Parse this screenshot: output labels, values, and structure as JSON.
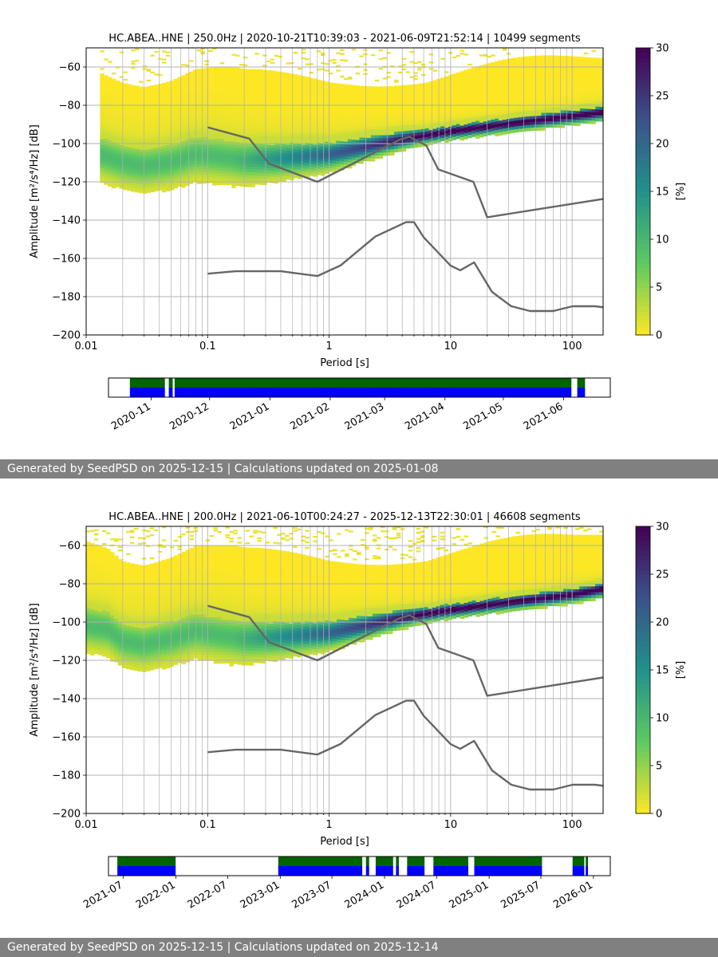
{
  "chart_data": [
    {
      "type": "heatmap",
      "title": "HC.ABEA..HNE | 250.0Hz | 2020-10-21T10:39:03 - 2021-06-09T21:52:14 | 10499 segments",
      "xlabel": "Period [s]",
      "ylabel": "Amplitude [m²/s⁴/Hz] [dB]",
      "xscale": "log",
      "xlim": [
        0.01,
        180
      ],
      "ylim": [
        -200,
        -50
      ],
      "xticks": [
        "0.01",
        "0.1",
        "1",
        "10",
        "100"
      ],
      "yticks": [
        "-60",
        "-80",
        "-100",
        "-120",
        "-140",
        "-160",
        "-180",
        "-200"
      ],
      "grid": true,
      "colorbar": {
        "label": "[%]",
        "range": [
          0,
          30
        ],
        "ticks": [
          "0",
          "5",
          "10",
          "15",
          "20",
          "25",
          "30"
        ],
        "colormap": "viridis_r"
      },
      "min_period": 0.013,
      "mode_curve": {
        "x": [
          0.013,
          0.02,
          0.03,
          0.05,
          0.08,
          0.12,
          0.2,
          0.4,
          1,
          2,
          4,
          10,
          30,
          100,
          180
        ],
        "y": [
          -105,
          -109,
          -111,
          -109,
          -105,
          -106,
          -108,
          -107,
          -105,
          -101,
          -97,
          -93,
          -89,
          -85,
          -83
        ]
      },
      "noise_models": {
        "high": {
          "x": [
            0.1,
            0.22,
            0.32,
            0.8,
            3.8,
            4.6,
            6.3,
            7.9,
            15.4,
            20,
            354.8
          ],
          "y": [
            -91.5,
            -97.4,
            -110.5,
            -120,
            -98,
            -96.5,
            -101,
            -113.5,
            -120,
            -138.5,
            -126
          ]
        },
        "low": {
          "x": [
            0.1,
            0.17,
            0.4,
            0.8,
            1.24,
            2.4,
            4.3,
            5,
            6,
            10,
            12,
            15.6,
            21.9,
            31.6,
            45,
            70,
            101,
            154,
            328
          ],
          "y": [
            -168,
            -166.7,
            -166.7,
            -169.2,
            -163.7,
            -148.6,
            -141.1,
            -141.1,
            -149,
            -163.8,
            -166.2,
            -162.1,
            -177.5,
            -185,
            -187.5,
            -187.5,
            -185,
            -185,
            -187.5
          ]
        }
      },
      "timeline": {
        "tick_labels": [
          "2020-11",
          "2020-12",
          "2021-01",
          "2021-02",
          "2021-03",
          "2021-04",
          "2021-05",
          "2021-06"
        ],
        "start": "2020-10-10",
        "end": "2021-06-25",
        "coverage": [
          [
            "2020-10-21",
            "2020-11-08"
          ],
          [
            "2020-11-10",
            "2020-11-12"
          ],
          [
            "2020-11-13",
            "2021-06-05"
          ],
          [
            "2021-06-08",
            "2021-06-12"
          ]
        ],
        "colors": {
          "upper": "#006400",
          "lower": "#0000ff"
        }
      },
      "footer": "Generated by SeedPSD on 2025-12-15 | Calculations updated on 2025-01-08"
    },
    {
      "type": "heatmap",
      "title": "HC.ABEA..HNE | 200.0Hz | 2021-06-10T00:24:27 - 2025-12-13T22:30:01 | 46608 segments",
      "xlabel": "Period [s]",
      "ylabel": "Amplitude [m²/s⁴/Hz] [dB]",
      "xscale": "log",
      "xlim": [
        0.01,
        180
      ],
      "ylim": [
        -200,
        -50
      ],
      "xticks": [
        "0.01",
        "0.1",
        "1",
        "10",
        "100"
      ],
      "yticks": [
        "-60",
        "-80",
        "-100",
        "-120",
        "-140",
        "-160",
        "-180",
        "-200"
      ],
      "grid": true,
      "colorbar": {
        "label": "[%]",
        "range": [
          0,
          30
        ],
        "ticks": [
          "0",
          "5",
          "10",
          "15",
          "20",
          "25",
          "30"
        ],
        "colormap": "viridis_r"
      },
      "min_period": 0.01,
      "mode_curve": {
        "x": [
          0.01,
          0.015,
          0.02,
          0.03,
          0.05,
          0.08,
          0.12,
          0.2,
          0.4,
          1,
          2,
          4,
          10,
          30,
          100,
          180
        ],
        "y": [
          -101,
          -103,
          -109,
          -111,
          -108,
          -104,
          -106,
          -108,
          -107,
          -105,
          -101,
          -97,
          -93,
          -89,
          -85,
          -82
        ]
      },
      "noise_models": {
        "high": {
          "x": [
            0.1,
            0.22,
            0.32,
            0.8,
            3.8,
            4.6,
            6.3,
            7.9,
            15.4,
            20,
            354.8
          ],
          "y": [
            -91.5,
            -97.4,
            -110.5,
            -120,
            -98,
            -96.5,
            -101,
            -113.5,
            -120,
            -138.5,
            -126
          ]
        },
        "low": {
          "x": [
            0.1,
            0.17,
            0.4,
            0.8,
            1.24,
            2.4,
            4.3,
            5,
            6,
            10,
            12,
            15.6,
            21.9,
            31.6,
            45,
            70,
            101,
            154,
            328
          ],
          "y": [
            -168,
            -166.7,
            -166.7,
            -169.2,
            -163.7,
            -148.6,
            -141.1,
            -141.1,
            -149,
            -163.8,
            -166.2,
            -162.1,
            -177.5,
            -185,
            -187.5,
            -187.5,
            -185,
            -185,
            -187.5
          ]
        }
      },
      "timeline": {
        "tick_labels": [
          "2021-07",
          "2022-01",
          "2022-07",
          "2023-01",
          "2023-07",
          "2024-01",
          "2024-07",
          "2025-01",
          "2025-07",
          "2026-01"
        ],
        "start": "2021-05-10",
        "end": "2026-03-01",
        "coverage": [
          [
            "2021-06-10",
            "2021-12-31"
          ],
          [
            "2022-12-25",
            "2023-10-15"
          ],
          [
            "2023-10-28",
            "2023-11-08"
          ],
          [
            "2023-12-01",
            "2024-01-31"
          ],
          [
            "2024-02-10",
            "2024-02-20"
          ],
          [
            "2024-03-20",
            "2024-05-20"
          ],
          [
            "2024-06-20",
            "2024-10-20"
          ],
          [
            "2024-11-10",
            "2025-07-05"
          ],
          [
            "2025-10-20",
            "2025-11-30"
          ],
          [
            "2025-12-05",
            "2025-12-13"
          ]
        ],
        "colors": {
          "upper": "#006400",
          "lower": "#0000ff"
        }
      },
      "footer": "Generated by SeedPSD on 2025-12-15 | Calculations updated on 2025-12-14"
    }
  ]
}
